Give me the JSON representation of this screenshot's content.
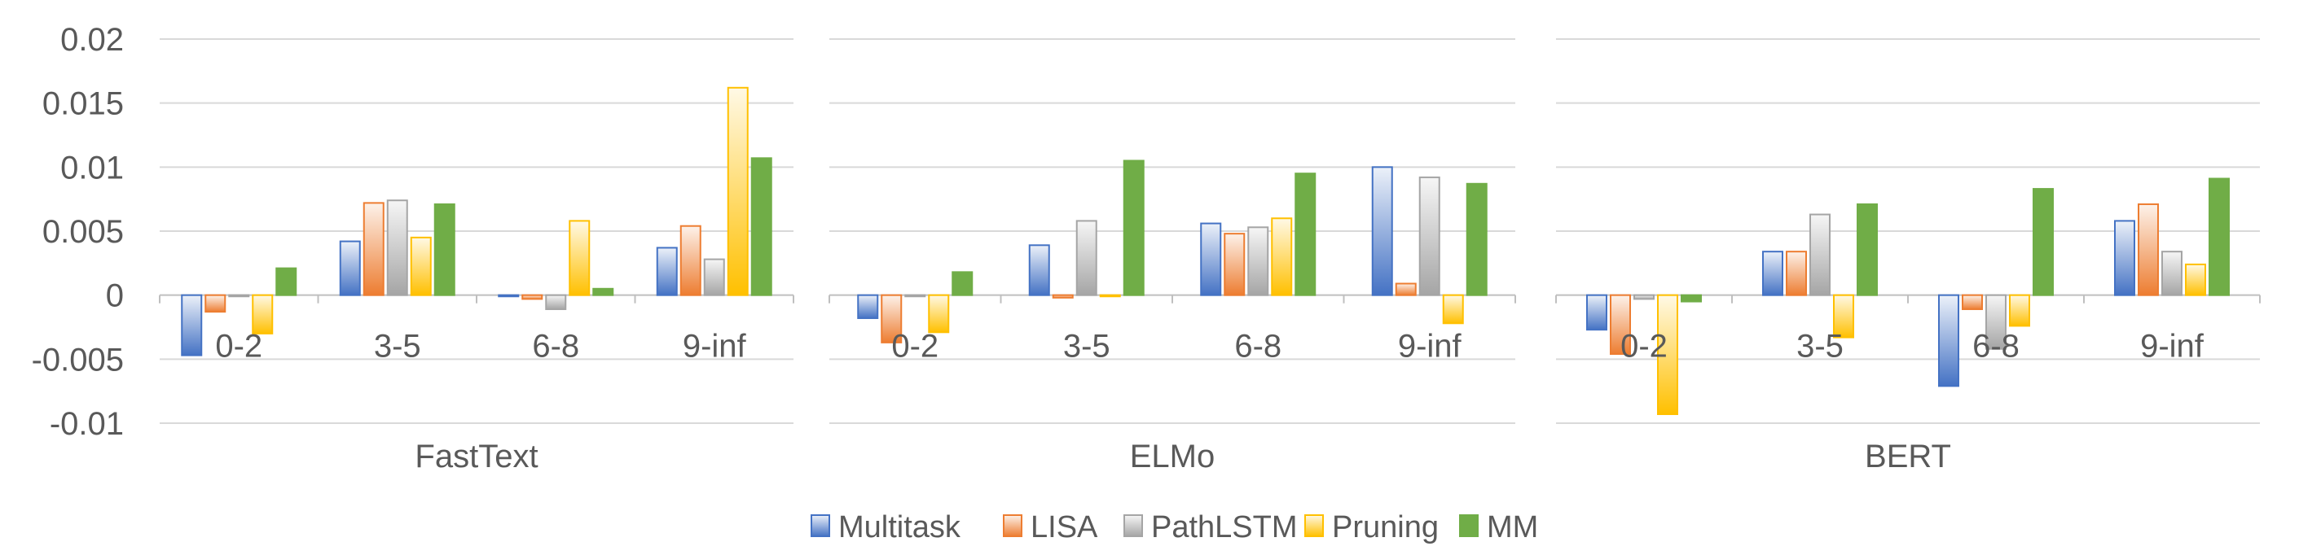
{
  "chart_data": {
    "type": "bar",
    "ylim": [
      -0.01,
      0.02
    ],
    "yticks": [
      "0.02",
      "0.015",
      "0.01",
      "0.005",
      "0",
      "-0.005",
      "-0.01"
    ],
    "ytick_values": [
      0.02,
      0.015,
      0.01,
      0.005,
      0,
      -0.005,
      -0.01
    ],
    "grid": true,
    "legend_position": "bottom",
    "series_names": [
      "Multitask",
      "LISA",
      "PathLSTM",
      "Pruning",
      "MM"
    ],
    "series_colors": [
      "#4472C4",
      "#ED7D31",
      "#A5A5A5",
      "#FFC000",
      "#70AD47"
    ],
    "categories": [
      "0-2",
      "3-5",
      "6-8",
      "9-inf"
    ],
    "panels": [
      {
        "title": "FastText",
        "series": [
          {
            "name": "Multitask",
            "values": [
              -0.0047,
              0.0042,
              -0.0001,
              0.0037
            ]
          },
          {
            "name": "LISA",
            "values": [
              -0.0013,
              0.0072,
              -0.0003,
              0.0054
            ]
          },
          {
            "name": "PathLSTM",
            "values": [
              -0.0001,
              0.0074,
              -0.0011,
              0.0028
            ]
          },
          {
            "name": "Pruning",
            "values": [
              -0.003,
              0.0045,
              0.0058,
              0.0162
            ]
          },
          {
            "name": "MM",
            "values": [
              0.0021,
              0.0071,
              0.0005,
              0.0107
            ]
          }
        ]
      },
      {
        "title": "ELMo",
        "series": [
          {
            "name": "Multitask",
            "values": [
              -0.0018,
              0.0039,
              0.0056,
              0.01
            ]
          },
          {
            "name": "LISA",
            "values": [
              -0.0037,
              -0.0002,
              0.0048,
              0.0009
            ]
          },
          {
            "name": "PathLSTM",
            "values": [
              -0.0001,
              0.0058,
              0.0053,
              0.0092
            ]
          },
          {
            "name": "Pruning",
            "values": [
              -0.0029,
              -0.0001,
              0.006,
              -0.0022
            ]
          },
          {
            "name": "MM",
            "values": [
              0.0018,
              0.0105,
              0.0095,
              0.0087
            ]
          }
        ]
      },
      {
        "title": "BERT",
        "series": [
          {
            "name": "Multitask",
            "values": [
              -0.0027,
              0.0034,
              -0.0071,
              0.0058
            ]
          },
          {
            "name": "LISA",
            "values": [
              -0.0046,
              0.0034,
              -0.0011,
              0.0071
            ]
          },
          {
            "name": "PathLSTM",
            "values": [
              -0.0003,
              0.0063,
              -0.0042,
              0.0034
            ]
          },
          {
            "name": "Pruning",
            "values": [
              -0.0093,
              -0.0033,
              -0.0024,
              0.0024
            ]
          },
          {
            "name": "MM",
            "values": [
              -0.0005,
              0.0071,
              0.0083,
              0.0091
            ]
          }
        ]
      }
    ]
  }
}
